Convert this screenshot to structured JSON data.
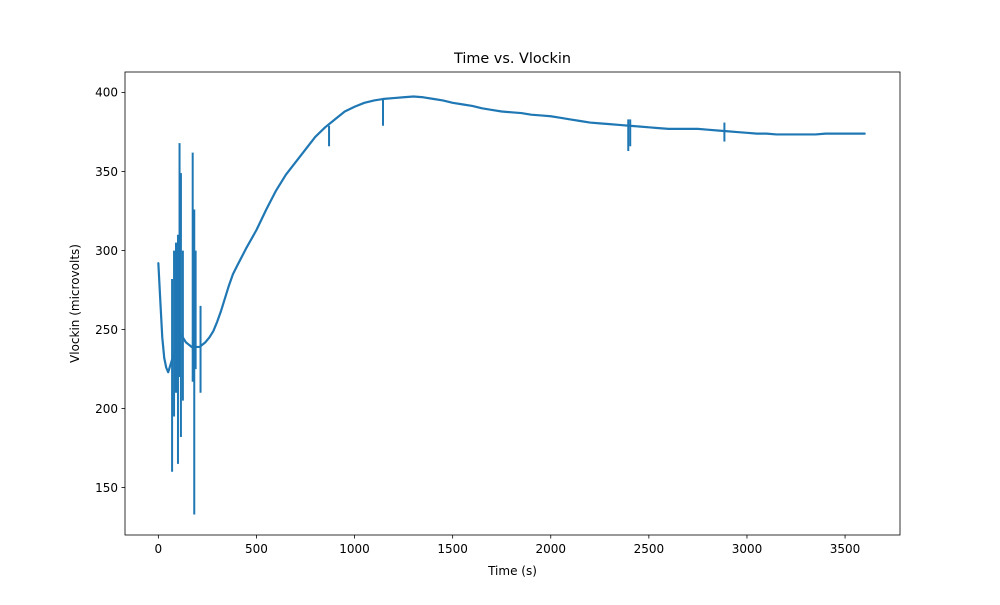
{
  "chart_data": {
    "type": "line",
    "title": "Time vs. Vlockin",
    "xlabel": "Time (s)",
    "ylabel": "Vlockin (microvolts)",
    "xlim": [
      -170,
      3780
    ],
    "ylim": [
      120,
      413
    ],
    "xticks": [
      0,
      500,
      1000,
      1500,
      2000,
      2500,
      3000,
      3500
    ],
    "yticks": [
      150,
      200,
      250,
      300,
      350,
      400
    ],
    "grid": false,
    "line_color": "#1f77b4",
    "series": [
      {
        "x": [
          0,
          10,
          20,
          30,
          40,
          50,
          60,
          70,
          80,
          90,
          100,
          110,
          120,
          130,
          140,
          150,
          160,
          170,
          180,
          190,
          200,
          210,
          220,
          240,
          260,
          280,
          300,
          320,
          340,
          360,
          380,
          400,
          450,
          500,
          550,
          600,
          650,
          700,
          750,
          800,
          850,
          900,
          950,
          1000,
          1050,
          1100,
          1150,
          1200,
          1250,
          1300,
          1350,
          1400,
          1450,
          1500,
          1550,
          1600,
          1650,
          1700,
          1750,
          1800,
          1850,
          1900,
          1950,
          2000,
          2050,
          2100,
          2150,
          2200,
          2250,
          2300,
          2350,
          2400,
          2450,
          2500,
          2550,
          2600,
          2650,
          2700,
          2750,
          2800,
          2850,
          2900,
          2950,
          3000,
          3050,
          3100,
          3150,
          3200,
          3250,
          3300,
          3350,
          3400,
          3450,
          3500,
          3550,
          3600
        ],
        "y": [
          292,
          268,
          245,
          232,
          226,
          223,
          227,
          231,
          234,
          238,
          242,
          245,
          246,
          244,
          242,
          241,
          240,
          239,
          240,
          239,
          239,
          239,
          240,
          242,
          245,
          249,
          255,
          262,
          270,
          278,
          285,
          290,
          302,
          313,
          326,
          338,
          348,
          356,
          364,
          372,
          378,
          383,
          388,
          391,
          393.5,
          395,
          396,
          396.5,
          397,
          397.5,
          397,
          396,
          395,
          393.5,
          392.5,
          391.5,
          390,
          389,
          388,
          387.5,
          387,
          386,
          385.5,
          385,
          384,
          383,
          382,
          381,
          380.5,
          380,
          379.5,
          379,
          378.5,
          378,
          377.5,
          377,
          377,
          377,
          377,
          376.5,
          376,
          375.5,
          375,
          374.5,
          374,
          374,
          373.5,
          373.5,
          373.5,
          373.5,
          373.5,
          374,
          374,
          374,
          374,
          374
        ]
      }
    ],
    "spikes": [
      {
        "x": 70,
        "y0": 160,
        "y1": 282
      },
      {
        "x": 80,
        "y0": 195,
        "y1": 300
      },
      {
        "x": 90,
        "y0": 210,
        "y1": 305
      },
      {
        "x": 100,
        "y0": 165,
        "y1": 310
      },
      {
        "x": 108,
        "y0": 220,
        "y1": 368
      },
      {
        "x": 115,
        "y0": 182,
        "y1": 349
      },
      {
        "x": 125,
        "y0": 205,
        "y1": 300
      },
      {
        "x": 175,
        "y0": 217,
        "y1": 362
      },
      {
        "x": 183,
        "y0": 133,
        "y1": 326
      },
      {
        "x": 190,
        "y0": 225,
        "y1": 300
      },
      {
        "x": 215,
        "y0": 210,
        "y1": 265
      },
      {
        "x": 870,
        "y0": 366,
        "y1": 379
      },
      {
        "x": 1145,
        "y0": 379,
        "y1": 396
      },
      {
        "x": 2395,
        "y0": 363,
        "y1": 383
      },
      {
        "x": 2405,
        "y0": 366,
        "y1": 383
      },
      {
        "x": 2885,
        "y0": 369,
        "y1": 381
      }
    ]
  }
}
